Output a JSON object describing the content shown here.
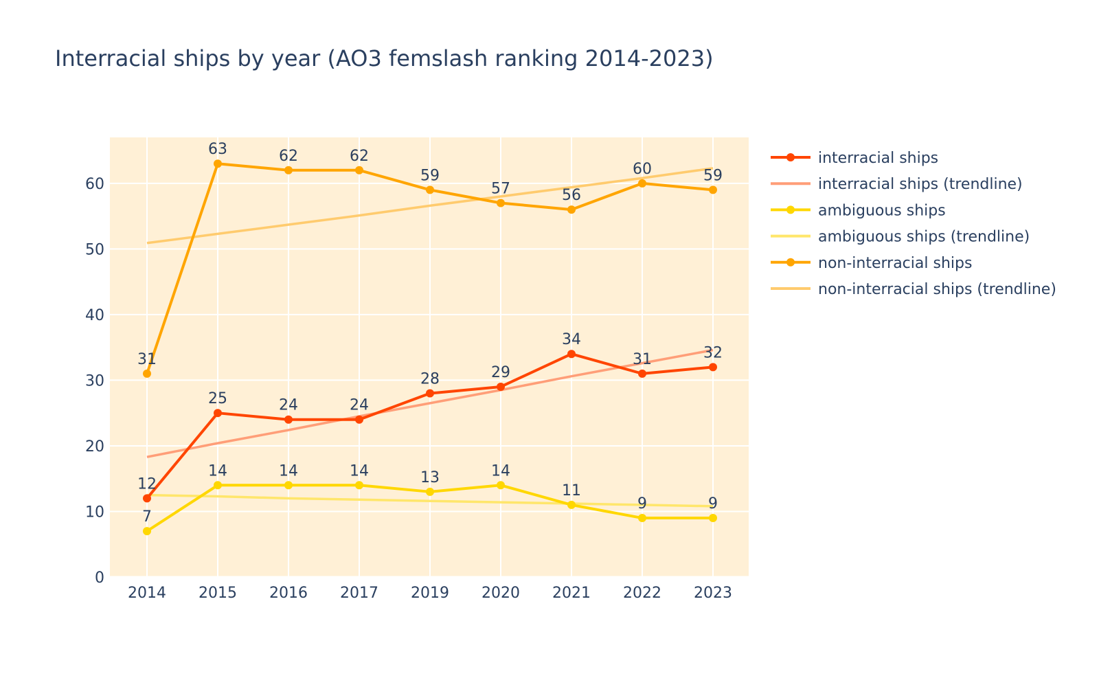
{
  "chart_data": {
    "type": "line",
    "title": "Interracial ships by year (AO3 femslash ranking 2014-2023)",
    "xlabel": "",
    "ylabel": "",
    "categories": [
      "2014",
      "2015",
      "2016",
      "2017",
      "2019",
      "2020",
      "2021",
      "2022",
      "2023"
    ],
    "ylim": [
      0,
      67
    ],
    "yticks": [
      0,
      10,
      20,
      30,
      40,
      50,
      60
    ],
    "grid": true,
    "legend_position": "right",
    "plot_background": "#fff0d6",
    "series": [
      {
        "name": "interracial ships",
        "kind": "markers+lines+labels",
        "color": "#ff4500",
        "values": [
          12,
          25,
          24,
          24,
          28,
          29,
          34,
          31,
          32
        ]
      },
      {
        "name": "interracial ships (trendline)",
        "kind": "trendline",
        "color": "#ff9e78",
        "values": [
          18.3,
          20.4,
          22.4,
          24.5,
          26.5,
          28.5,
          30.6,
          32.6,
          34.6
        ]
      },
      {
        "name": "ambiguous ships",
        "kind": "markers+lines+labels",
        "color": "#ffd700",
        "values": [
          7,
          14,
          14,
          14,
          13,
          14,
          11,
          9,
          9
        ]
      },
      {
        "name": "ambiguous ships (trendline)",
        "kind": "trendline",
        "color": "#ffe66b",
        "values": [
          12.5,
          12.3,
          12.0,
          11.8,
          11.6,
          11.4,
          11.2,
          11.0,
          10.8
        ]
      },
      {
        "name": "non-interracial ships",
        "kind": "markers+lines+labels",
        "color": "#ffa500",
        "values": [
          31,
          63,
          62,
          62,
          59,
          57,
          56,
          60,
          59
        ]
      },
      {
        "name": "non-interracial ships (trendline)",
        "kind": "trendline",
        "color": "#ffcb6e",
        "values": [
          50.9,
          52.3,
          53.7,
          55.1,
          56.6,
          58.0,
          59.4,
          60.8,
          62.3
        ]
      }
    ]
  }
}
